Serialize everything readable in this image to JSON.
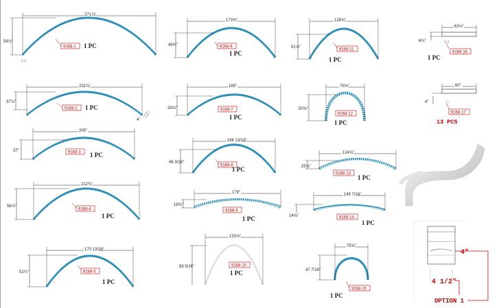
{
  "colors": {
    "arc": "#2f8fb5",
    "dim": "#222222",
    "tag": "#c00000"
  },
  "parts": [
    {
      "id": "p1",
      "width": "271⅞\"",
      "height": "54⅛\"",
      "tag": "9168-1",
      "qty": "1 PC",
      "note": "C-2"
    },
    {
      "id": "p2",
      "width": "232⅞\"",
      "height": "37⅞\"",
      "tag": "9168-2",
      "qty": "1 PC",
      "side": "4\""
    },
    {
      "id": "p3",
      "width": "205\"",
      "height": "37\"",
      "tag": "9168-3",
      "qty": "1 PC"
    },
    {
      "id": "p4",
      "width": "212⅜\"",
      "height": "56⅞\"",
      "tag": "9168-4",
      "qty": "1 PC"
    },
    {
      "id": "p5",
      "width": "170 13/16\"",
      "height": "51½\"",
      "tag": "9168-5",
      "qty": "1 PC"
    },
    {
      "id": "p6",
      "width": "173⅜\"",
      "height": "49¾\"",
      "tag": "9168-6",
      "qty": "1 PC"
    },
    {
      "id": "p7",
      "width": "189\"",
      "height": "33⅝\"",
      "tag": "9168-7",
      "qty": "1 PC"
    },
    {
      "id": "p8",
      "width": "166 13/16\"",
      "height": "46 3/16\"",
      "tag": "9168-8",
      "qty": "1 PC"
    },
    {
      "id": "p9",
      "width": "179\"",
      "height": "19⅝\"",
      "tag": "9168-9",
      "qty": "1 PC"
    },
    {
      "id": "p10",
      "width": "133⅛\"",
      "height": "83 5/16\"",
      "tag": "9168-10",
      "qty": "1 PC"
    },
    {
      "id": "p11",
      "width": "128⅞\"",
      "height": "51⅛\"",
      "tag": "9168-11",
      "qty": "1 PC"
    },
    {
      "id": "p12",
      "width": "75⅝\"",
      "height": "50⅝\"",
      "tag": "9168-12",
      "qty": "1 PC"
    },
    {
      "id": "p13",
      "width": "124⅛\"",
      "height": "25⅛\"",
      "tag": "9168-13",
      "qty": "1 PC"
    },
    {
      "id": "p14",
      "width": "145 7/16\"",
      "height": "14⅝\"",
      "tag": "9168-14",
      "qty": "1 PC"
    },
    {
      "id": "p15",
      "width": "75⅝\"",
      "height": "47 7/16\"",
      "tag": "9168-15",
      "qty": "1 PC"
    },
    {
      "id": "p16",
      "width": "63⅛\"",
      "height": "6⅛\"",
      "tag": "9168-16",
      "qty": "1 PC",
      "note": "C-4"
    },
    {
      "id": "p17",
      "width": "60\"",
      "height": "4\"",
      "tag": "9168-17",
      "qty": "13 PCS"
    }
  ],
  "option": {
    "height_label": "4\"",
    "width_label": "4 1/2\"",
    "caption": "OPTION 1"
  }
}
